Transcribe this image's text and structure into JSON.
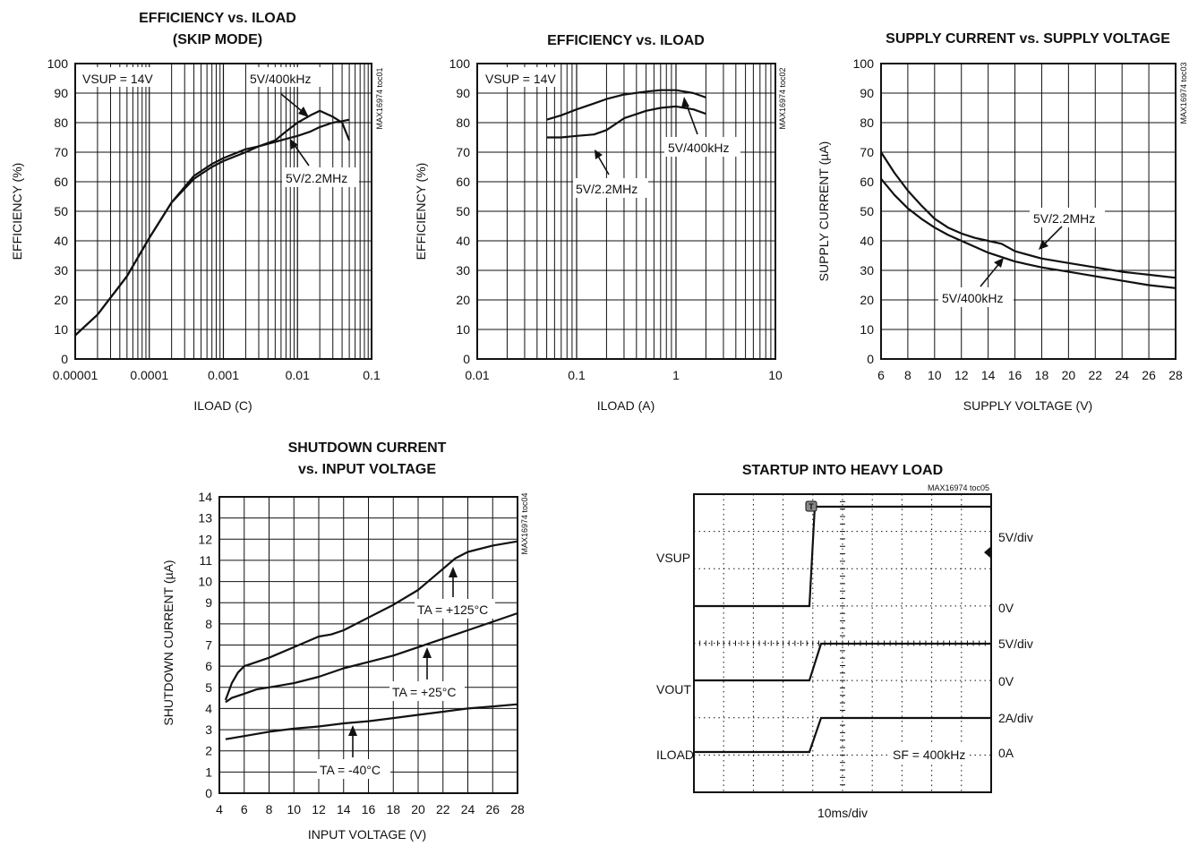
{
  "colors": {
    "curve": "#111111",
    "grid": "#111111",
    "background": "#ffffff"
  },
  "chart_data": [
    {
      "id": "toc01",
      "type": "line",
      "title": "EFFICIENCY vs. ILOAD",
      "subtitle": "(SKIP MODE)",
      "xlabel": "ILOAD (C)",
      "ylabel": "EFFICIENCY (%)",
      "code": "MAX16974 toc01",
      "xscale": "log",
      "xlim": [
        1e-05,
        0.1
      ],
      "ylim": [
        0,
        100
      ],
      "xticks": [
        "0.00001",
        "0.0001",
        "0.001",
        "0.01",
        "0.1"
      ],
      "yticks": [
        "0",
        "10",
        "20",
        "30",
        "40",
        "50",
        "60",
        "70",
        "80",
        "90",
        "100"
      ],
      "grid": true,
      "condition": "VSUP = 14V",
      "series": [
        {
          "name": "5V/400kHz",
          "x": [
            1e-05,
            2e-05,
            5e-05,
            0.0001,
            0.0002,
            0.0004,
            0.0007,
            0.001,
            0.002,
            0.003,
            0.005,
            0.007,
            0.01,
            0.015,
            0.02,
            0.03,
            0.04,
            0.05
          ],
          "y": [
            8,
            15,
            28,
            41,
            53,
            62,
            66,
            68,
            71,
            72,
            74,
            77,
            80,
            82.5,
            84,
            82,
            80,
            74
          ]
        },
        {
          "name": "5V/2.2MHz",
          "x": [
            1e-05,
            2e-05,
            5e-05,
            0.0001,
            0.0002,
            0.0004,
            0.0007,
            0.001,
            0.002,
            0.003,
            0.005,
            0.007,
            0.01,
            0.015,
            0.02,
            0.03,
            0.04,
            0.05
          ],
          "y": [
            8,
            15,
            28,
            41,
            53,
            61,
            65,
            67,
            70,
            72,
            73.5,
            74.5,
            75.5,
            77,
            78.5,
            80,
            80.5,
            81
          ]
        }
      ],
      "annotations": [
        "VSUP = 14V",
        "5V/400kHz",
        "5V/2.2MHz"
      ]
    },
    {
      "id": "toc02",
      "type": "line",
      "title": "EFFICIENCY vs. ILOAD",
      "xlabel": "ILOAD (A)",
      "ylabel": "EFFICIENCY (%)",
      "code": "MAX16974 toc02",
      "xscale": "log",
      "xlim": [
        0.01,
        10
      ],
      "ylim": [
        0,
        100
      ],
      "xticks": [
        "0.01",
        "0.1",
        "1",
        "10"
      ],
      "yticks": [
        "0",
        "10",
        "20",
        "30",
        "40",
        "50",
        "60",
        "70",
        "80",
        "90",
        "100"
      ],
      "grid": true,
      "condition": "VSUP = 14V",
      "series": [
        {
          "name": "5V/400kHz",
          "x": [
            0.05,
            0.07,
            0.1,
            0.15,
            0.2,
            0.3,
            0.5,
            0.7,
            1,
            1.5,
            2
          ],
          "y": [
            81,
            82.5,
            84.5,
            86.5,
            88,
            89.5,
            90.5,
            91,
            91,
            90,
            88.5
          ]
        },
        {
          "name": "5V/2.2MHz",
          "x": [
            0.05,
            0.07,
            0.1,
            0.15,
            0.2,
            0.3,
            0.5,
            0.7,
            1,
            1.5,
            2
          ],
          "y": [
            75,
            75,
            75.5,
            76,
            77.5,
            81.5,
            84,
            85,
            85.5,
            84.5,
            83
          ]
        }
      ],
      "annotations": [
        "VSUP = 14V",
        "5V/400kHz",
        "5V/2.2MHz"
      ]
    },
    {
      "id": "toc03",
      "type": "line",
      "title": "SUPPLY CURRENT vs. SUPPLY VOLTAGE",
      "xlabel": "SUPPLY VOLTAGE (V)",
      "ylabel": "SUPPLY CURRENT (µA)",
      "code": "MAX16974 toc03",
      "xlim": [
        6,
        28
      ],
      "ylim": [
        0,
        100
      ],
      "xticks": [
        "6",
        "8",
        "10",
        "12",
        "14",
        "16",
        "18",
        "20",
        "22",
        "24",
        "26",
        "28"
      ],
      "yticks": [
        "0",
        "10",
        "20",
        "30",
        "40",
        "50",
        "60",
        "70",
        "80",
        "90",
        "100"
      ],
      "grid": true,
      "series": [
        {
          "name": "5V/2.2MHz",
          "x": [
            6,
            7,
            8,
            9,
            10,
            11,
            12,
            13,
            14,
            15,
            16,
            18,
            20,
            22,
            24,
            26,
            28
          ],
          "y": [
            70,
            63,
            57,
            52,
            47.5,
            44.5,
            42.5,
            41,
            40,
            39,
            36.5,
            34,
            32.5,
            31,
            29.5,
            28.5,
            27.5
          ]
        },
        {
          "name": "5V/400kHz",
          "x": [
            6,
            7,
            8,
            9,
            10,
            11,
            12,
            13,
            14,
            16,
            18,
            20,
            22,
            24,
            26,
            28
          ],
          "y": [
            61,
            55.5,
            51,
            47.5,
            44.5,
            42,
            40,
            38,
            36,
            33,
            31,
            29.5,
            28,
            26.5,
            25,
            24
          ]
        }
      ],
      "annotations": [
        "5V/2.2MHz",
        "5V/400kHz"
      ]
    },
    {
      "id": "toc04",
      "type": "line",
      "title": "SHUTDOWN CURRENT",
      "subtitle": "vs. INPUT VOLTAGE",
      "xlabel": "INPUT VOLTAGE (V)",
      "ylabel": "SHUTDOWN CURRENT (µA)",
      "code": "MAX16974 toc04",
      "xlim": [
        4,
        28
      ],
      "ylim": [
        0,
        14
      ],
      "xticks": [
        "4",
        "6",
        "8",
        "10",
        "12",
        "14",
        "16",
        "18",
        "20",
        "22",
        "24",
        "26",
        "28"
      ],
      "yticks": [
        "0",
        "1",
        "2",
        "3",
        "4",
        "5",
        "6",
        "7",
        "8",
        "9",
        "10",
        "11",
        "12",
        "13",
        "14"
      ],
      "grid": true,
      "series": [
        {
          "name": "TA = +125°C",
          "x": [
            4.5,
            5,
            5.5,
            6,
            6.5,
            8,
            10,
            12,
            13,
            14,
            16,
            18,
            20,
            21,
            22,
            23,
            24,
            26,
            28
          ],
          "y": [
            4.4,
            5.2,
            5.7,
            6,
            6.1,
            6.4,
            6.9,
            7.4,
            7.5,
            7.7,
            8.3,
            8.9,
            9.6,
            10.1,
            10.6,
            11.1,
            11.4,
            11.7,
            11.9
          ]
        },
        {
          "name": "TA = +25°C",
          "x": [
            4.5,
            5,
            6,
            7,
            8,
            10,
            12,
            14,
            16,
            18,
            20,
            22,
            24,
            26,
            28
          ],
          "y": [
            4.3,
            4.5,
            4.7,
            4.9,
            5.0,
            5.2,
            5.5,
            5.9,
            6.2,
            6.5,
            6.9,
            7.3,
            7.7,
            8.1,
            8.5
          ]
        },
        {
          "name": "TA = -40°C",
          "x": [
            4.5,
            6,
            8,
            10,
            12,
            14,
            16,
            18,
            20,
            22,
            24,
            26,
            28
          ],
          "y": [
            2.55,
            2.7,
            2.9,
            3.05,
            3.15,
            3.3,
            3.4,
            3.55,
            3.7,
            3.85,
            4.0,
            4.1,
            4.2
          ]
        }
      ],
      "annotations": [
        "TA = +125°C",
        "TA = +25°C",
        "TA = -40°C"
      ]
    },
    {
      "id": "toc05",
      "type": "line",
      "title": "STARTUP INTO HEAVY LOAD",
      "xlabel": "10ms/div",
      "code": "MAX16974 toc05",
      "grid": true,
      "trigger_marker": "T",
      "channels": [
        {
          "name": "VSUP",
          "scale": "5V/div",
          "zero": "0V"
        },
        {
          "name": "VOUT",
          "scale": "5V/div",
          "zero": "0V"
        },
        {
          "name": "ILOAD",
          "scale": "2A/div",
          "zero": "0A"
        }
      ],
      "annotations": [
        "SF = 400kHz"
      ]
    }
  ]
}
